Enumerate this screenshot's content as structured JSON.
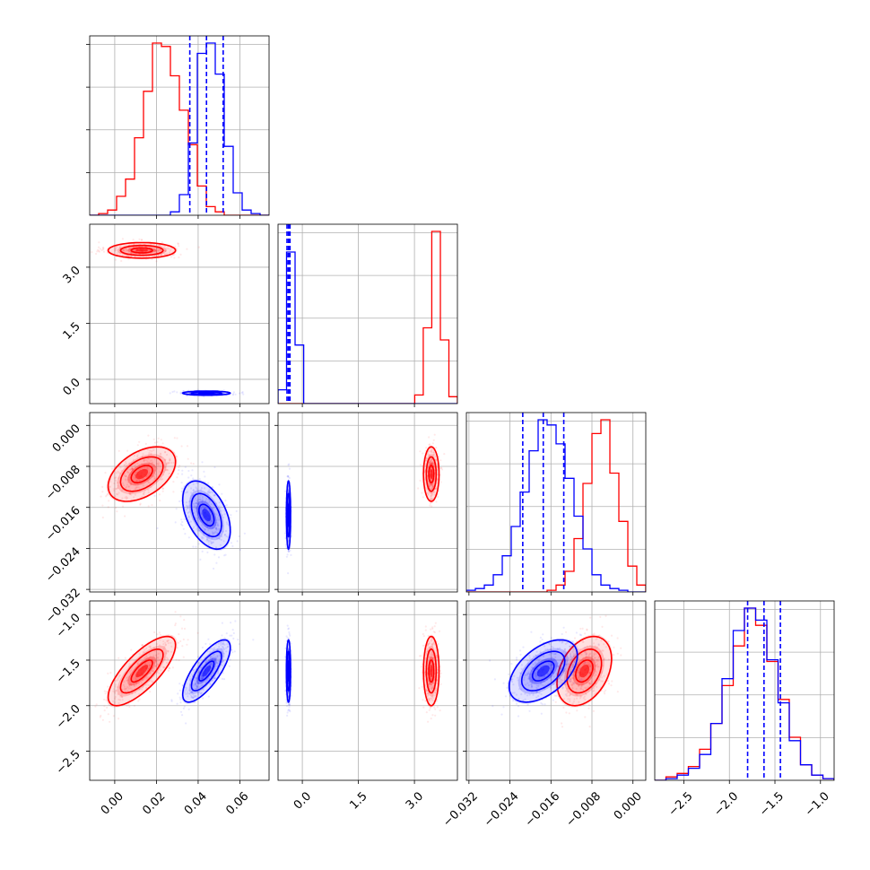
{
  "colors": {
    "series_a": "#ff0000",
    "series_b": "#0000ff",
    "grid": "#b0b0b0"
  },
  "chart_data": {
    "type": "corner",
    "grid": true,
    "legend": "none",
    "parameters": [
      {
        "ticks": [
          "0.00",
          "0.02",
          "0.04",
          "0.06"
        ],
        "tick_values": [
          0.0,
          0.02,
          0.04,
          0.06
        ],
        "range": [
          -0.012,
          0.074
        ]
      },
      {
        "ticks": [
          "0.0",
          "1.5",
          "3.0"
        ],
        "tick_values": [
          0.0,
          1.5,
          3.0
        ],
        "range": [
          -0.65,
          4.15
        ]
      },
      {
        "ticks": [
          "−0.032",
          "−0.024",
          "−0.016",
          "−0.008",
          "0.000"
        ],
        "tick_values": [
          -0.032,
          -0.024,
          -0.016,
          -0.008,
          0.0
        ],
        "range": [
          -0.0325,
          0.0025
        ]
      },
      {
        "ticks": [
          "−2.5",
          "−2.0",
          "−1.5",
          "−1.0"
        ],
        "tick_values": [
          -2.5,
          -2.0,
          -1.5,
          -1.0
        ],
        "range": [
          -2.82,
          -0.85
        ]
      }
    ],
    "series": [
      {
        "color": "#ff0000",
        "mean": [
          0.013,
          3.45,
          -0.0095,
          -1.62
        ],
        "std": [
          0.0085,
          0.11,
          0.0028,
          0.2
        ],
        "corr": [
          [
            1,
            0,
            0.45,
            0.75
          ],
          [
            0,
            1,
            0,
            0
          ],
          [
            0.45,
            0,
            1,
            0.35
          ],
          [
            0.75,
            0,
            0.35,
            1
          ]
        ],
        "marginal_hist": [
          {
            "edges": [
              -0.012,
              0.074
            ],
            "counts": [
              0,
              1,
              3,
              11,
              21,
              45,
              72,
              100,
              98,
              81,
              61,
              41,
              17,
              5,
              2,
              0,
              0,
              0,
              0,
              0
            ]
          },
          {
            "edges": [
              -0.65,
              4.15
            ],
            "counts": [
              0,
              0,
              0,
              0,
              0,
              0,
              0,
              0,
              0,
              0,
              0,
              0,
              0,
              0,
              0,
              0,
              5,
              44,
              100,
              37,
              4
            ]
          },
          {
            "edges": [
              -0.0325,
              0.0025
            ],
            "counts": [
              0,
              0,
              0,
              0,
              0,
              0,
              0,
              0,
              0,
              1,
              4,
              12,
              31,
              63,
              92,
              100,
              69,
              41,
              15,
              4
            ]
          },
          {
            "edges": [
              -2.82,
              -0.85
            ],
            "counts": [
              0,
              2,
              4,
              8,
              18,
              33,
              55,
              78,
              100,
              90,
              69,
              47,
              25,
              9,
              3,
              1
            ]
          }
        ]
      },
      {
        "color": "#0000ff",
        "mean": [
          0.044,
          -0.37,
          -0.0175,
          -1.62
        ],
        "std": [
          0.006,
          0.03,
          0.0035,
          0.18
        ],
        "corr": [
          [
            1,
            0,
            -0.45,
            0.75
          ],
          [
            0,
            1,
            0,
            0
          ],
          [
            -0.45,
            0,
            1,
            0.5
          ],
          [
            0.75,
            0,
            0.5,
            1
          ]
        ],
        "marginal_hist": [
          {
            "edges": [
              -0.012,
              0.074
            ],
            "counts": [
              0,
              0,
              0,
              0,
              0,
              0,
              0,
              0,
              0,
              2,
              12,
              42,
              94,
              100,
              82,
              40,
              13,
              3,
              1,
              0
            ]
          },
          {
            "edges": [
              -0.65,
              4.15
            ],
            "counts": [
              8,
              88,
              34,
              0,
              0,
              0,
              0,
              0,
              0,
              0,
              0,
              0,
              0,
              0,
              0,
              0,
              0,
              0,
              0,
              0,
              0
            ]
          },
          {
            "edges": [
              -0.0325,
              0.0025
            ],
            "counts": [
              1,
              2,
              4,
              10,
              21,
              38,
              58,
              82,
              100,
              97,
              86,
              66,
              44,
              25,
              10,
              4,
              2,
              1,
              0,
              0
            ]
          },
          {
            "edges": [
              -2.82,
              -0.85
            ],
            "counts": [
              0,
              1,
              3,
              7,
              15,
              33,
              59,
              87,
              100,
              93,
              70,
              45,
              23,
              9,
              3,
              1
            ]
          }
        ],
        "quantiles": [
          [
            0.036,
            0.044,
            0.052
          ],
          [
            -0.41,
            -0.37,
            -0.33
          ],
          [
            -0.0215,
            -0.0175,
            -0.0135
          ],
          [
            -1.8,
            -1.62,
            -1.44
          ]
        ]
      }
    ]
  }
}
